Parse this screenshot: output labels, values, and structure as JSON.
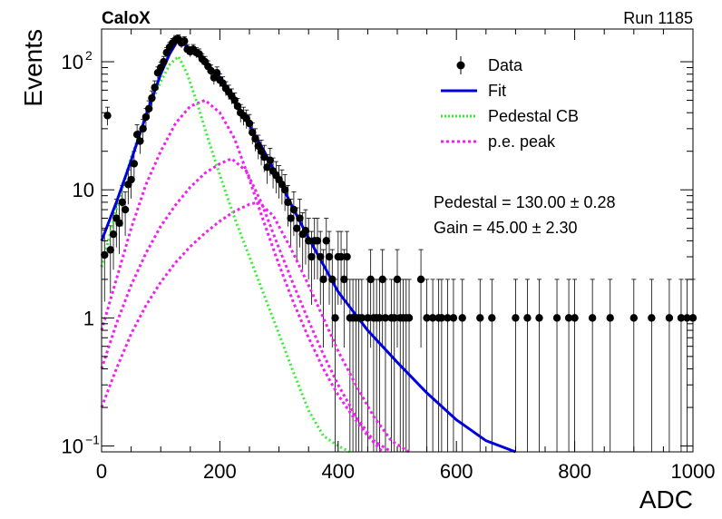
{
  "header": {
    "experiment": "CaloX",
    "run": "Run 1185"
  },
  "chart_data": {
    "type": "scatter",
    "title": "",
    "xlabel": "ADC",
    "ylabel": "Events",
    "xlim": [
      0,
      1000
    ],
    "ylim": [
      0.09,
      180
    ],
    "log_y": true,
    "x_ticks": [
      0,
      200,
      400,
      600,
      800,
      1000
    ],
    "y_ticks": [
      {
        "value": 0.1,
        "label": "10",
        "exp": "−1"
      },
      {
        "value": 1,
        "label": "1",
        "exp": ""
      },
      {
        "value": 10,
        "label": "10",
        "exp": ""
      },
      {
        "value": 100,
        "label": "10",
        "exp": "2"
      }
    ],
    "legend_position": "top-right",
    "legend": [
      {
        "label": "Data",
        "color": "#000000",
        "style": "marker"
      },
      {
        "label": "Fit",
        "color": "#0000dd",
        "style": "solid"
      },
      {
        "label": "Pedestal CB",
        "color": "#33ee33",
        "style": "dotted"
      },
      {
        "label": "p.e. peak",
        "color": "#ee22ee",
        "style": "dotted"
      }
    ],
    "annotations": [
      {
        "label": "Pedestal",
        "value": "130.00",
        "error": "0.28"
      },
      {
        "label": "Gain",
        "value": "45.00",
        "error": "2.30"
      }
    ],
    "data_points": [
      [
        5,
        3.1
      ],
      [
        10,
        38
      ],
      [
        15,
        3.4
      ],
      [
        20,
        4.5
      ],
      [
        25,
        6.0
      ],
      [
        30,
        5.5
      ],
      [
        35,
        8.0
      ],
      [
        40,
        7.0
      ],
      [
        45,
        11
      ],
      [
        50,
        12
      ],
      [
        55,
        16
      ],
      [
        60,
        27
      ],
      [
        65,
        24
      ],
      [
        70,
        30
      ],
      [
        75,
        37
      ],
      [
        80,
        43
      ],
      [
        85,
        52
      ],
      [
        90,
        63
      ],
      [
        95,
        82
      ],
      [
        100,
        90
      ],
      [
        105,
        100
      ],
      [
        110,
        118
      ],
      [
        115,
        130
      ],
      [
        120,
        140
      ],
      [
        125,
        148
      ],
      [
        130,
        150
      ],
      [
        135,
        140
      ],
      [
        140,
        145
      ],
      [
        145,
        125
      ],
      [
        150,
        120
      ],
      [
        155,
        125
      ],
      [
        160,
        118
      ],
      [
        165,
        115
      ],
      [
        170,
        105
      ],
      [
        175,
        100
      ],
      [
        180,
        92
      ],
      [
        185,
        85
      ],
      [
        190,
        75
      ],
      [
        195,
        82
      ],
      [
        200,
        72
      ],
      [
        205,
        68
      ],
      [
        210,
        62
      ],
      [
        215,
        58
      ],
      [
        220,
        54
      ],
      [
        225,
        50
      ],
      [
        230,
        45
      ],
      [
        235,
        40
      ],
      [
        240,
        38
      ],
      [
        245,
        36
      ],
      [
        250,
        33
      ],
      [
        255,
        28
      ],
      [
        260,
        25
      ],
      [
        265,
        22
      ],
      [
        270,
        20
      ],
      [
        275,
        18
      ],
      [
        280,
        15
      ],
      [
        285,
        17
      ],
      [
        290,
        14
      ],
      [
        295,
        13
      ],
      [
        300,
        12
      ],
      [
        305,
        11
      ],
      [
        310,
        10
      ],
      [
        315,
        8
      ],
      [
        320,
        6
      ],
      [
        325,
        7
      ],
      [
        330,
        5
      ],
      [
        335,
        6
      ],
      [
        340,
        4.5
      ],
      [
        345,
        4.8
      ],
      [
        350,
        4.0
      ],
      [
        355,
        3.0
      ],
      [
        360,
        4.0
      ],
      [
        365,
        4.0
      ],
      [
        370,
        3.0
      ],
      [
        375,
        2.0
      ],
      [
        380,
        4.0
      ],
      [
        385,
        3.0
      ],
      [
        390,
        2.0
      ],
      [
        395,
        1.0
      ],
      [
        400,
        3.0
      ],
      [
        405,
        3.0
      ],
      [
        410,
        2.0
      ],
      [
        415,
        3.0
      ],
      [
        420,
        1.0
      ],
      [
        425,
        1.0
      ],
      [
        430,
        1.0
      ],
      [
        435,
        1.0
      ],
      [
        440,
        1.0
      ],
      [
        450,
        1.0
      ],
      [
        455,
        2.0
      ],
      [
        460,
        1.0
      ],
      [
        465,
        1.0
      ],
      [
        470,
        1.0
      ],
      [
        475,
        2.0
      ],
      [
        480,
        1.0
      ],
      [
        490,
        1.0
      ],
      [
        495,
        1.0
      ],
      [
        500,
        2.0
      ],
      [
        505,
        1.0
      ],
      [
        510,
        1.0
      ],
      [
        515,
        1.0
      ],
      [
        520,
        1.0
      ],
      [
        540,
        2.0
      ],
      [
        550,
        1.0
      ],
      [
        560,
        1.0
      ],
      [
        570,
        1.0
      ],
      [
        575,
        1.0
      ],
      [
        585,
        1.0
      ],
      [
        595,
        1.0
      ],
      [
        610,
        1.0
      ],
      [
        640,
        1.0
      ],
      [
        660,
        1.0
      ],
      [
        700,
        1.0
      ],
      [
        720,
        1.0
      ],
      [
        740,
        1.0
      ],
      [
        770,
        1.0
      ],
      [
        790,
        1.0
      ],
      [
        800,
        1.0
      ],
      [
        830,
        1.0
      ],
      [
        860,
        1.0
      ],
      [
        900,
        1.0
      ],
      [
        930,
        1.0
      ],
      [
        960,
        1.0
      ],
      [
        980,
        1.0
      ],
      [
        990,
        1.0
      ],
      [
        1000,
        1.0
      ]
    ],
    "fit_curve": [
      [
        0,
        4.0
      ],
      [
        25,
        8.0
      ],
      [
        50,
        17
      ],
      [
        75,
        38
      ],
      [
        100,
        80
      ],
      [
        115,
        115
      ],
      [
        130,
        150
      ],
      [
        150,
        125
      ],
      [
        175,
        100
      ],
      [
        200,
        75
      ],
      [
        225,
        50
      ],
      [
        250,
        32
      ],
      [
        275,
        20
      ],
      [
        300,
        12
      ],
      [
        325,
        7
      ],
      [
        350,
        4.2
      ],
      [
        375,
        2.6
      ],
      [
        400,
        1.6
      ],
      [
        450,
        0.8
      ],
      [
        500,
        0.45
      ],
      [
        550,
        0.26
      ],
      [
        600,
        0.16
      ],
      [
        650,
        0.11
      ],
      [
        700,
        0.07
      ]
    ],
    "pedestal_curve": [
      [
        0,
        2.5
      ],
      [
        25,
        7
      ],
      [
        50,
        18
      ],
      [
        75,
        38
      ],
      [
        100,
        70
      ],
      [
        115,
        95
      ],
      [
        130,
        110
      ],
      [
        145,
        80
      ],
      [
        160,
        50
      ],
      [
        180,
        25
      ],
      [
        200,
        13
      ],
      [
        225,
        6
      ],
      [
        250,
        3.0
      ],
      [
        275,
        1.5
      ],
      [
        300,
        0.75
      ],
      [
        325,
        0.37
      ],
      [
        350,
        0.19
      ],
      [
        375,
        0.12
      ],
      [
        400,
        0.1
      ],
      [
        420,
        0.09
      ]
    ],
    "pe_peaks": [
      [
        [
          0,
          0.8
        ],
        [
          25,
          2.0
        ],
        [
          50,
          5
        ],
        [
          75,
          11
        ],
        [
          100,
          20
        ],
        [
          125,
          33
        ],
        [
          150,
          45
        ],
        [
          175,
          50
        ],
        [
          200,
          40
        ],
        [
          225,
          25
        ],
        [
          250,
          12
        ],
        [
          275,
          5.5
        ],
        [
          300,
          2.6
        ],
        [
          325,
          1.3
        ],
        [
          350,
          0.7
        ],
        [
          375,
          0.4
        ],
        [
          400,
          0.25
        ],
        [
          425,
          0.17
        ],
        [
          450,
          0.12
        ],
        [
          475,
          0.09
        ]
      ],
      [
        [
          0,
          0.4
        ],
        [
          25,
          0.9
        ],
        [
          50,
          1.8
        ],
        [
          75,
          3.2
        ],
        [
          100,
          5.2
        ],
        [
          125,
          7.6
        ],
        [
          150,
          10.5
        ],
        [
          175,
          13.5
        ],
        [
          200,
          16
        ],
        [
          220,
          17.5
        ],
        [
          245,
          14
        ],
        [
          270,
          8
        ],
        [
          300,
          3.5
        ],
        [
          325,
          1.8
        ],
        [
          350,
          0.95
        ],
        [
          375,
          0.52
        ],
        [
          400,
          0.3
        ],
        [
          430,
          0.17
        ],
        [
          460,
          0.11
        ],
        [
          490,
          0.08
        ]
      ],
      [
        [
          0,
          0.2
        ],
        [
          25,
          0.4
        ],
        [
          50,
          0.75
        ],
        [
          75,
          1.25
        ],
        [
          100,
          1.9
        ],
        [
          125,
          2.7
        ],
        [
          150,
          3.6
        ],
        [
          175,
          4.6
        ],
        [
          200,
          5.7
        ],
        [
          225,
          6.8
        ],
        [
          250,
          7.7
        ],
        [
          265,
          8.0
        ],
        [
          290,
          6.3
        ],
        [
          320,
          3.5
        ],
        [
          350,
          1.8
        ],
        [
          375,
          1.0
        ],
        [
          400,
          0.55
        ],
        [
          430,
          0.3
        ],
        [
          460,
          0.17
        ],
        [
          490,
          0.11
        ],
        [
          520,
          0.07
        ]
      ]
    ]
  }
}
